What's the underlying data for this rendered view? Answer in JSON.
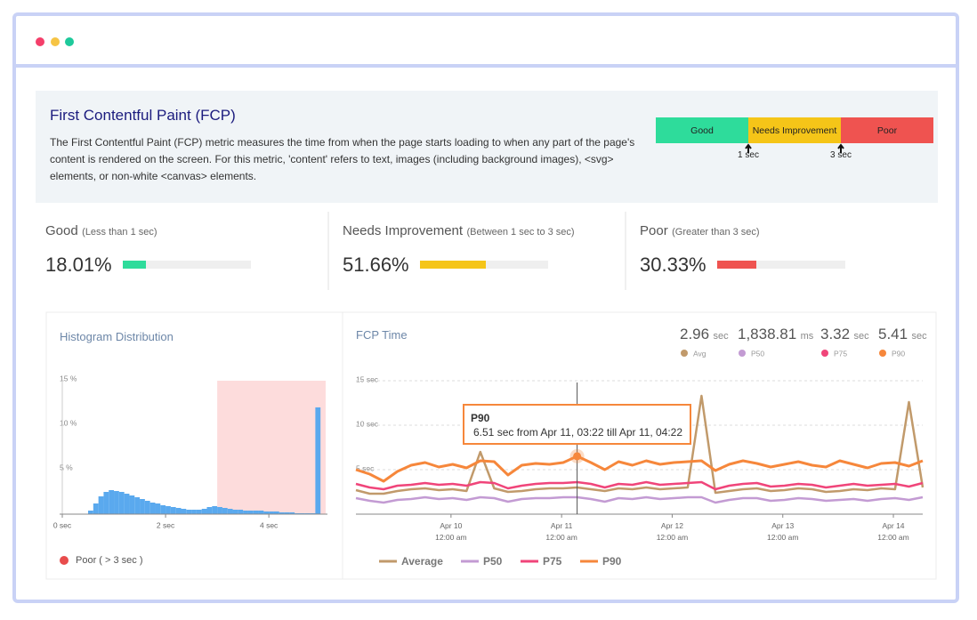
{
  "header": {
    "title": "First Contentful Paint (FCP)",
    "description": "The First Contentful Paint (FCP) metric measures the time from when the page starts loading to when any part of the page's content is rendered on the screen. For this metric, 'content' refers to text, images (including background images), <svg> elements, or non-white <canvas> elements."
  },
  "thresholds": {
    "segments": [
      {
        "label": "Good",
        "color": "#2edc9b"
      },
      {
        "label": "Needs Improvement",
        "color": "#f5c518"
      },
      {
        "label": "Poor",
        "color": "#ef5350"
      }
    ],
    "markers": [
      "1 sec",
      "3 sec"
    ]
  },
  "cards": [
    {
      "label": "Good",
      "note": "(Less than 1 sec)",
      "percent": {
        "value": 18.01,
        "label": "18.01%"
      },
      "color": "#2edc9b"
    },
    {
      "label": "Needs Improvement",
      "note": "(Between 1 sec to 3 sec)",
      "percent": {
        "value": 51.66,
        "label": "51.66%"
      },
      "color": "#f5c518"
    },
    {
      "label": "Poor",
      "note": "(Greater than 3 sec)",
      "percent": {
        "value": 30.33,
        "label": "30.33%"
      },
      "color": "#ef5350"
    }
  ],
  "chart_data": [
    {
      "type": "histogram",
      "title": "Histogram Distribution",
      "bins": [
        0,
        0.1,
        0.2,
        0.3,
        0.4,
        0.5,
        0.6,
        0.7,
        0.8,
        0.9,
        1.0,
        1.1,
        1.2,
        1.3,
        1.4,
        1.5,
        1.6,
        1.7,
        1.8,
        1.9,
        2.0,
        2.1,
        2.2,
        2.3,
        2.4,
        2.5,
        2.6,
        2.7,
        2.8,
        2.9,
        3.0,
        3.1,
        3.2,
        3.3,
        3.4,
        3.5,
        3.6,
        3.7,
        3.8,
        3.9,
        4.0,
        4.1,
        4.2,
        4.3,
        4.4,
        4.5,
        4.6,
        4.7,
        4.8,
        4.9,
        5.0
      ],
      "values": [
        0,
        0,
        0,
        0,
        0,
        0.4,
        1.2,
        2.0,
        2.5,
        2.7,
        2.6,
        2.5,
        2.3,
        2.1,
        1.9,
        1.7,
        1.5,
        1.3,
        1.2,
        1.0,
        0.9,
        0.8,
        0.7,
        0.6,
        0.5,
        0.5,
        0.5,
        0.6,
        0.8,
        0.9,
        0.8,
        0.7,
        0.6,
        0.5,
        0.5,
        0.4,
        0.4,
        0.4,
        0.4,
        0.3,
        0.3,
        0.3,
        0.2,
        0.2,
        0.2,
        0.1,
        0.1,
        0.1,
        0.1,
        12.0
      ],
      "color": "#5aa9ee",
      "xlim": [
        0,
        5.1
      ],
      "xticks": [
        {
          "value": 0,
          "label": "0 sec"
        },
        {
          "value": 2,
          "label": "2 sec"
        },
        {
          "value": 4,
          "label": "4 sec"
        }
      ],
      "ylim": [
        0,
        15
      ],
      "yticks": [
        {
          "value": 5,
          "label": "5 %"
        },
        {
          "value": 10,
          "label": "10 %"
        },
        {
          "value": 15,
          "label": "15 %"
        }
      ],
      "highlight_from": 3,
      "highlight_color": "#fddcdc",
      "legend": {
        "name": "Poor ( > 3 sec )",
        "color": "#e84c4c"
      }
    },
    {
      "type": "line",
      "title": "FCP Time",
      "x": [
        "Apr 09, 03:22",
        "Apr 09, 06:22",
        "Apr 09, 09:22",
        "Apr 09, 12:22",
        "Apr 09, 15:22",
        "Apr 09, 18:22",
        "Apr 09, 21:22",
        "Apr 10, 00:22",
        "Apr 10, 03:22",
        "Apr 10, 06:22",
        "Apr 10, 09:22",
        "Apr 10, 12:22",
        "Apr 10, 15:22",
        "Apr 10, 18:22",
        "Apr 10, 21:22",
        "Apr 11, 00:22",
        "Apr 11, 03:22",
        "Apr 11, 06:22",
        "Apr 11, 09:22",
        "Apr 11, 12:22",
        "Apr 11, 15:22",
        "Apr 11, 18:22",
        "Apr 11, 21:22",
        "Apr 12, 00:22",
        "Apr 12, 03:22",
        "Apr 12, 06:22",
        "Apr 12, 09:22",
        "Apr 12, 12:22",
        "Apr 12, 15:22",
        "Apr 12, 18:22",
        "Apr 12, 21:22",
        "Apr 13, 00:22",
        "Apr 13, 03:22",
        "Apr 13, 06:22",
        "Apr 13, 09:22",
        "Apr 13, 12:22",
        "Apr 13, 15:22",
        "Apr 13, 18:22",
        "Apr 13, 21:22",
        "Apr 14, 00:22",
        "Apr 14, 03:22",
        "Apr 14, 06:22"
      ],
      "xlim": [
        "Apr 09, 03:22",
        "Apr 14, 06:22"
      ],
      "xticks": [
        "Apr 10 12:00 am",
        "Apr 11 12:00 am",
        "Apr 12 12:00 am",
        "Apr 13 12:00 am",
        "Apr 14 12:00 am"
      ],
      "ylim": [
        0,
        15
      ],
      "yticks": [
        {
          "value": 5,
          "label": "5 sec"
        },
        {
          "value": 10,
          "label": "10 sec"
        },
        {
          "value": 15,
          "label": "15 sec"
        }
      ],
      "grid": true,
      "series": [
        {
          "name": "Average",
          "color": "#c19a6b",
          "values": [
            2.7,
            2.3,
            2.3,
            2.6,
            2.8,
            2.9,
            2.7,
            2.8,
            2.6,
            7.0,
            2.9,
            2.5,
            2.6,
            2.8,
            2.9,
            2.9,
            3.0,
            2.8,
            2.6,
            2.9,
            2.8,
            3.0,
            2.8,
            2.9,
            3.0,
            13.3,
            2.4,
            2.6,
            2.8,
            2.9,
            2.6,
            2.7,
            2.9,
            2.8,
            2.5,
            2.6,
            2.8,
            2.7,
            2.9,
            2.8,
            12.6,
            3.0
          ]
        },
        {
          "name": "P50",
          "color": "#c39bd3",
          "values": [
            1.8,
            1.5,
            1.3,
            1.6,
            1.7,
            1.9,
            1.7,
            1.8,
            1.6,
            1.9,
            1.8,
            1.4,
            1.7,
            1.8,
            1.8,
            1.9,
            1.9,
            1.7,
            1.4,
            1.8,
            1.7,
            1.9,
            1.7,
            1.8,
            1.9,
            1.9,
            1.3,
            1.6,
            1.8,
            1.8,
            1.5,
            1.6,
            1.8,
            1.7,
            1.5,
            1.6,
            1.7,
            1.5,
            1.7,
            1.8,
            1.6,
            1.9
          ]
        },
        {
          "name": "P75",
          "color": "#f0457a",
          "values": [
            3.4,
            3.0,
            2.8,
            3.2,
            3.3,
            3.5,
            3.3,
            3.4,
            3.2,
            3.6,
            3.5,
            2.9,
            3.2,
            3.4,
            3.5,
            3.5,
            3.6,
            3.4,
            3.0,
            3.4,
            3.3,
            3.6,
            3.3,
            3.4,
            3.5,
            3.6,
            2.8,
            3.2,
            3.4,
            3.5,
            3.1,
            3.2,
            3.4,
            3.3,
            3.0,
            3.2,
            3.4,
            3.2,
            3.3,
            3.4,
            3.1,
            3.5
          ]
        },
        {
          "name": "P90",
          "color": "#f6873b",
          "values": [
            5.0,
            4.5,
            3.7,
            4.8,
            5.5,
            5.8,
            5.3,
            5.6,
            5.2,
            6.0,
            5.9,
            4.4,
            5.5,
            5.7,
            5.6,
            5.8,
            6.51,
            5.8,
            5.0,
            5.9,
            5.5,
            6.0,
            5.6,
            5.8,
            5.9,
            6.0,
            4.9,
            5.6,
            6.0,
            5.7,
            5.3,
            5.6,
            5.9,
            5.5,
            5.3,
            6.0,
            5.6,
            5.2,
            5.7,
            5.8,
            5.4,
            6.0
          ]
        }
      ],
      "stats": [
        {
          "value": 2.96,
          "unit": "sec",
          "name": "Avg"
        },
        {
          "value": 1838.81,
          "label": "1,838.81",
          "unit": "ms",
          "name": "P50"
        },
        {
          "value": 3.32,
          "unit": "sec",
          "name": "P75"
        },
        {
          "value": 5.41,
          "unit": "sec",
          "name": "P90"
        }
      ],
      "tooltip": {
        "title": "P90",
        "text": "6.51 sec from Apr 11, 03:22 till Apr 11, 04:22"
      }
    }
  ]
}
